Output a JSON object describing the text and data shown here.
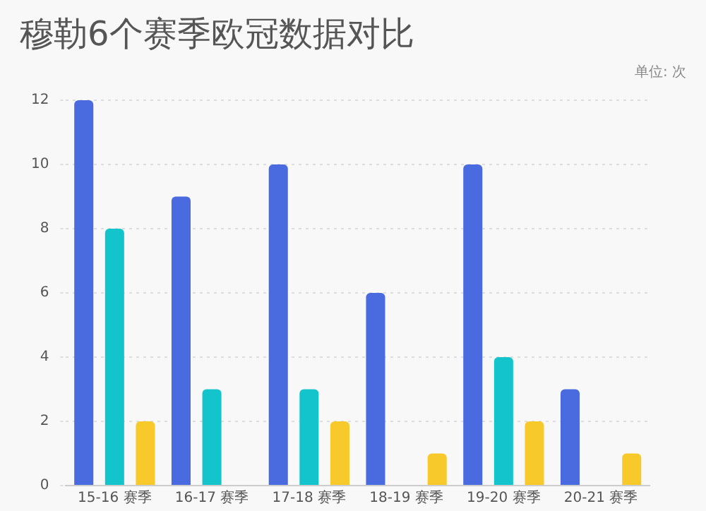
{
  "chart_data": {
    "type": "bar",
    "title": "穆勒6个赛季欧冠数据对比",
    "annotations": [
      "单位: 次"
    ],
    "categories": [
      "15-16 赛季",
      "16-17 赛季",
      "17-18 赛季",
      "18-19 赛季",
      "19-20 赛季",
      "20-21 赛季"
    ],
    "series": [
      {
        "color": "#4a6be0",
        "values": [
          12,
          9,
          10,
          6,
          10,
          3
        ]
      },
      {
        "color": "#14c4cc",
        "values": [
          8,
          3,
          3,
          0,
          4,
          0
        ]
      },
      {
        "color": "#f8c92a",
        "values": [
          2,
          0,
          2,
          1,
          2,
          1
        ]
      }
    ],
    "ylim": [
      0,
      12
    ],
    "yticks": [
      0,
      2,
      4,
      6,
      8,
      10,
      12
    ],
    "grid": "y",
    "legend": false
  }
}
